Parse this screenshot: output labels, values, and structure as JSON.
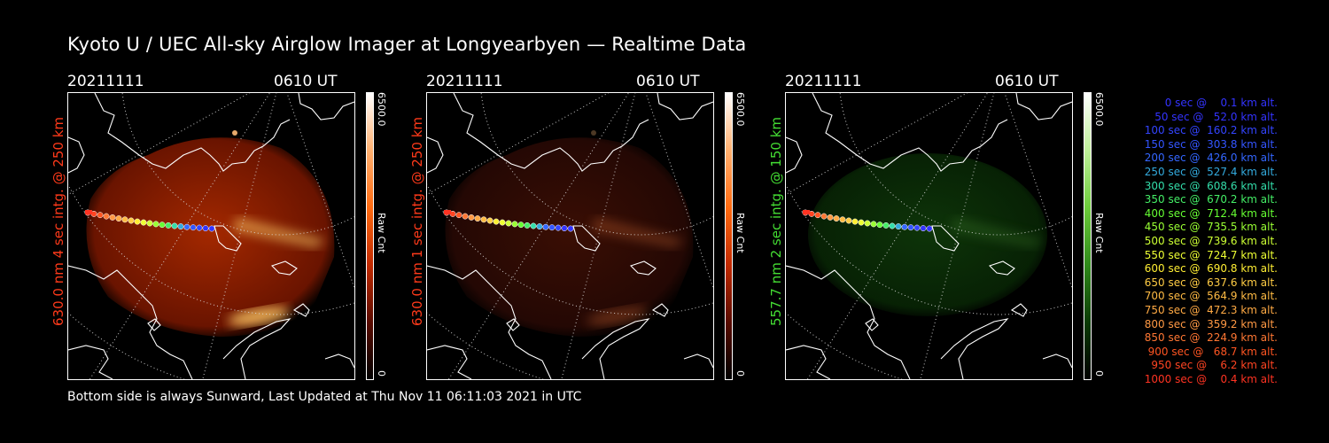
{
  "title": "Kyoto U / UEC All-sky Airglow Imager at Longyearbyen — Realtime Data",
  "footer": "Bottom side is always Sunward, Last Updated at Thu Nov 11 06:11:03 2021 in UTC",
  "panels": [
    {
      "date": "20211111",
      "time": "0610 UT",
      "ylabel": "630.0 nm 4 sec intg. @ 250 km",
      "label_color": "#ff3a1a",
      "colorbar": {
        "max": "6500.0",
        "min": "0",
        "label": "Raw Cnt",
        "gradient": [
          "#000000",
          "#5a0b00",
          "#c22a00",
          "#ff6a10",
          "#ffb070",
          "#ffffff"
        ]
      }
    },
    {
      "date": "20211111",
      "time": "0610 UT",
      "ylabel": "630.0 nm 1 sec intg. @ 250 km",
      "label_color": "#ff3a1a",
      "colorbar": {
        "max": "6500.0",
        "min": "0",
        "label": "Raw Cnt",
        "gradient": [
          "#000000",
          "#5a0b00",
          "#c22a00",
          "#ff6a10",
          "#ffb070",
          "#ffffff"
        ]
      }
    },
    {
      "date": "20211111",
      "time": "0610 UT",
      "ylabel": "557.7 nm 2 sec intg. @ 150 km",
      "label_color": "#44dd33",
      "colorbar": {
        "max": "6500.0",
        "min": "0",
        "label": "Raw Cnt",
        "gradient": [
          "#000000",
          "#0b3b05",
          "#2f8a1a",
          "#6ccc3a",
          "#bff09a",
          "#ffffff"
        ]
      }
    }
  ],
  "legend": [
    {
      "text": "0 sec @    0.1 km alt.",
      "color": "#3333ff"
    },
    {
      "text": "50 sec @   52.0 km alt.",
      "color": "#3333ff"
    },
    {
      "text": "100 sec @  160.2 km alt.",
      "color": "#3344ff"
    },
    {
      "text": "150 sec @  303.8 km alt.",
      "color": "#3355ff"
    },
    {
      "text": "200 sec @  426.0 km alt.",
      "color": "#3366ff"
    },
    {
      "text": "250 sec @  527.4 km alt.",
      "color": "#33aadd"
    },
    {
      "text": "300 sec @  608.6 km alt.",
      "color": "#33ddaa"
    },
    {
      "text": "350 sec @  670.2 km alt.",
      "color": "#44ee66"
    },
    {
      "text": "400 sec @  712.4 km alt.",
      "color": "#66ff33"
    },
    {
      "text": "450 sec @  735.5 km alt.",
      "color": "#99ff33"
    },
    {
      "text": "500 sec @  739.6 km alt.",
      "color": "#ccff33"
    },
    {
      "text": "550 sec @  724.7 km alt.",
      "color": "#eeff33"
    },
    {
      "text": "600 sec @  690.8 km alt.",
      "color": "#ffee33"
    },
    {
      "text": "650 sec @  637.6 km alt.",
      "color": "#ffcc44"
    },
    {
      "text": "700 sec @  564.9 km alt.",
      "color": "#ffbb44"
    },
    {
      "text": "750 sec @  472.3 km alt.",
      "color": "#ffaa44"
    },
    {
      "text": "800 sec @  359.2 km alt.",
      "color": "#ff9944"
    },
    {
      "text": "850 sec @  224.9 km alt.",
      "color": "#ff7733"
    },
    {
      "text": "900 sec @   68.7 km alt.",
      "color": "#ff5522"
    },
    {
      "text": "950 sec @    6.2 km alt.",
      "color": "#ff4422"
    },
    {
      "text": "1000 sec @    0.4 km alt.",
      "color": "#ff3322"
    }
  ]
}
